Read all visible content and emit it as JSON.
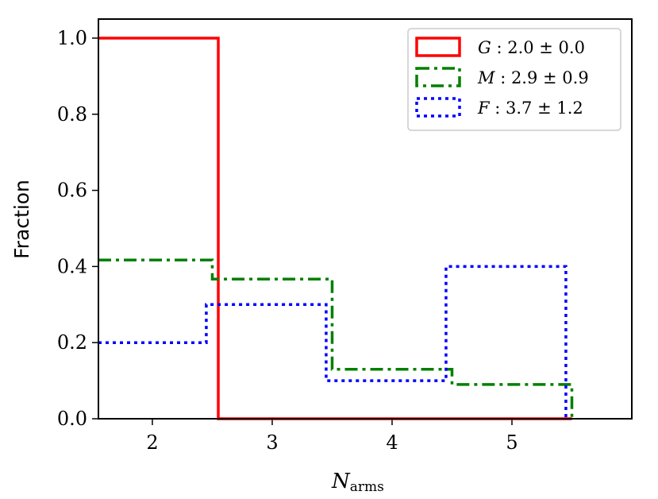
{
  "chart_data": {
    "type": "histogram-step",
    "ylabel": "Fraction",
    "xlabel_main": "N",
    "xlabel_sub": "arms",
    "xlim": [
      1.55,
      6.0
    ],
    "ylim": [
      0,
      1.05
    ],
    "xticks": [
      "2",
      "3",
      "4",
      "5"
    ],
    "xtick_values": [
      2,
      3,
      4,
      5
    ],
    "yticks": [
      "0.0",
      "0.2",
      "0.4",
      "0.6",
      "0.8",
      "1.0"
    ],
    "ytick_values": [
      0,
      0.2,
      0.4,
      0.6,
      0.8,
      1.0
    ],
    "legend_position": "top-right",
    "series": [
      {
        "name": "G : 2.0 ± 0.0",
        "color": "#ff0000",
        "style": "solid",
        "edges": [
          1.55,
          2.55,
          5.5
        ],
        "values": [
          1.0,
          0.0
        ]
      },
      {
        "name": "M : 2.9 ± 0.9",
        "color": "#008000",
        "style": "dashdot",
        "edges": [
          1.55,
          2.5,
          3.5,
          4.5,
          5.5
        ],
        "values": [
          0.417,
          0.367,
          0.13,
          0.09
        ]
      },
      {
        "name": "F : 3.7 ± 1.2",
        "color": "#0000ff",
        "style": "dotted",
        "edges": [
          1.55,
          2.45,
          3.45,
          4.45,
          5.45
        ],
        "values": [
          0.2,
          0.3,
          0.1,
          0.4
        ]
      }
    ]
  }
}
